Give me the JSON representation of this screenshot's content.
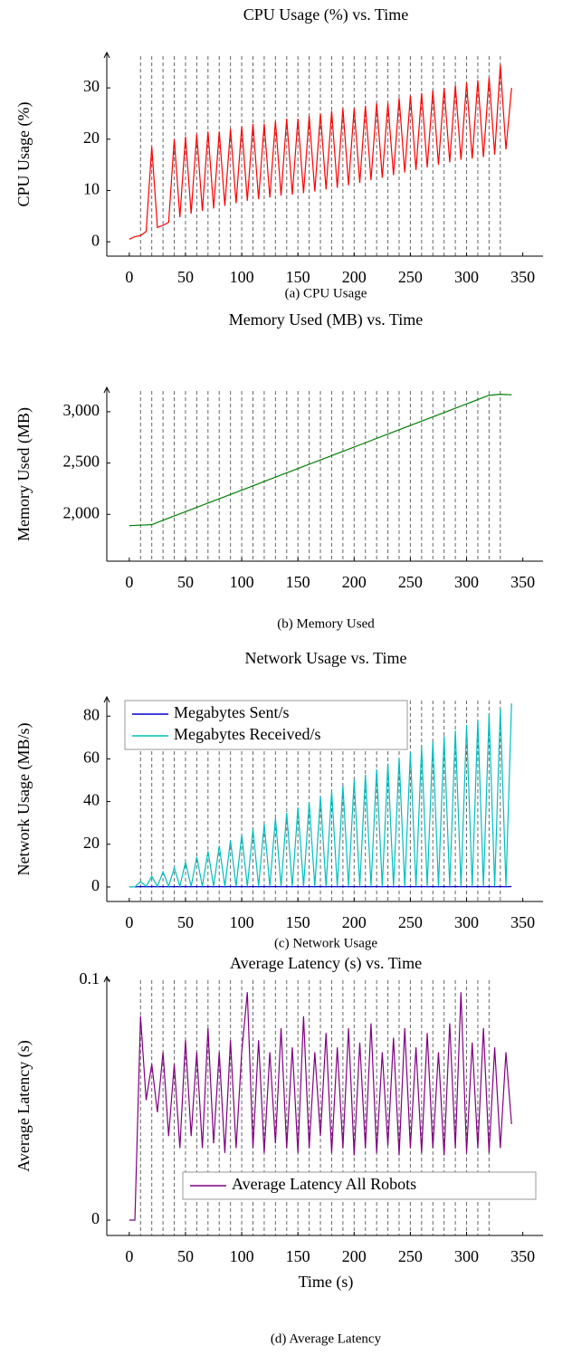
{
  "chart_data": [
    {
      "type": "line",
      "title": "CPU Usage (%) vs. Time",
      "caption": "(a) CPU Usage",
      "ylabel": "CPU Usage (%)",
      "x": [
        0,
        5,
        10,
        15,
        20,
        25,
        30,
        35,
        40,
        45,
        50,
        55,
        60,
        65,
        70,
        75,
        80,
        85,
        90,
        95,
        100,
        105,
        110,
        115,
        120,
        125,
        130,
        135,
        140,
        145,
        150,
        155,
        160,
        165,
        170,
        175,
        180,
        185,
        190,
        195,
        200,
        205,
        210,
        215,
        220,
        225,
        230,
        235,
        240,
        245,
        250,
        255,
        260,
        265,
        270,
        275,
        280,
        285,
        290,
        295,
        300,
        305,
        310,
        315,
        320,
        325,
        330,
        335,
        340
      ],
      "series": [
        {
          "color": "#ff0000",
          "values": [
            0.5,
            1,
            1.2,
            2,
            18.5,
            2.8,
            3.2,
            3.8,
            20,
            4.8,
            20.5,
            5.5,
            21,
            6,
            21.5,
            6.5,
            21.5,
            7,
            22,
            7.5,
            22.5,
            8,
            23,
            8.3,
            23,
            8.6,
            23.5,
            9,
            24,
            9.2,
            24,
            9.5,
            24.5,
            9.8,
            25,
            10.2,
            25.5,
            10.5,
            26,
            11,
            26,
            11.5,
            26.5,
            12,
            27,
            12.5,
            27,
            13,
            28,
            13.5,
            28.5,
            14,
            29,
            14.5,
            29.5,
            15,
            30,
            15.5,
            30.5,
            16,
            31,
            16.2,
            31.5,
            16.5,
            32,
            17,
            34.5,
            18,
            30
          ]
        }
      ],
      "xlim": [
        -20,
        368
      ],
      "ylim": [
        -2.8,
        36.9
      ],
      "xticks": [
        0,
        50,
        100,
        150,
        200,
        250,
        300,
        350
      ],
      "yticks": [
        0,
        10,
        20,
        30
      ],
      "vlines": [
        10,
        20,
        30,
        40,
        50,
        60,
        70,
        80,
        90,
        100,
        110,
        120,
        130,
        140,
        150,
        160,
        170,
        180,
        190,
        200,
        210,
        220,
        230,
        240,
        250,
        260,
        270,
        280,
        290,
        300,
        310,
        320,
        330
      ]
    },
    {
      "type": "line",
      "title": "Memory Used (MB) vs. Time",
      "caption": "(b) Memory Used",
      "ylabel": "Memory Used (MB)",
      "x": [
        0,
        10,
        20,
        30,
        40,
        50,
        60,
        70,
        80,
        90,
        100,
        110,
        120,
        130,
        140,
        150,
        160,
        170,
        180,
        190,
        200,
        210,
        220,
        230,
        240,
        250,
        260,
        270,
        280,
        290,
        300,
        310,
        320,
        330,
        340
      ],
      "series": [
        {
          "color": "#008000",
          "values": [
            1890,
            1895,
            1900,
            1942,
            1984,
            2026,
            2068,
            2110,
            2152,
            2194,
            2236,
            2278,
            2320,
            2362,
            2404,
            2446,
            2488,
            2530,
            2572,
            2614,
            2656,
            2698,
            2740,
            2782,
            2824,
            2866,
            2908,
            2950,
            2992,
            3034,
            3076,
            3118,
            3160,
            3170,
            3165
          ]
        }
      ],
      "xlim": [
        -20,
        368
      ],
      "ylim": [
        1544,
        3237
      ],
      "xticks": [
        0,
        50,
        100,
        150,
        200,
        250,
        300,
        350
      ],
      "yticks": [
        {
          "value": 2000,
          "label": "2,000"
        },
        {
          "value": 2500,
          "label": "2,500"
        },
        {
          "value": 3000,
          "label": "3,000"
        }
      ],
      "vlines": [
        10,
        20,
        30,
        40,
        50,
        60,
        70,
        80,
        90,
        100,
        110,
        120,
        130,
        140,
        150,
        160,
        170,
        180,
        190,
        200,
        210,
        220,
        230,
        240,
        250,
        260,
        270,
        280,
        290,
        300,
        310,
        320,
        330
      ]
    },
    {
      "type": "line",
      "title": "Network Usage vs. Time",
      "caption": "(c) Network Usage",
      "ylabel": "Network Usage (MB/s)",
      "x": [
        0,
        5,
        10,
        15,
        20,
        25,
        30,
        35,
        40,
        45,
        50,
        55,
        60,
        65,
        70,
        75,
        80,
        85,
        90,
        95,
        100,
        105,
        110,
        115,
        120,
        125,
        130,
        135,
        140,
        145,
        150,
        155,
        160,
        165,
        170,
        175,
        180,
        185,
        190,
        195,
        200,
        205,
        210,
        215,
        220,
        225,
        230,
        235,
        240,
        245,
        250,
        255,
        260,
        265,
        270,
        275,
        280,
        285,
        290,
        295,
        300,
        305,
        310,
        315,
        320,
        325,
        330,
        335,
        340
      ],
      "series": [
        {
          "name": "Megabytes Sent/s",
          "color": "#0000cc",
          "values": [
            0,
            0,
            0.2,
            0.1,
            0.2,
            0.1,
            0.2,
            0.1,
            0.2,
            0.1,
            0.2,
            0.1,
            0.2,
            0.1,
            0.2,
            0.1,
            0.2,
            0.1,
            0.2,
            0.1,
            0.2,
            0.1,
            0.2,
            0.1,
            0.2,
            0.1,
            0.2,
            0.1,
            0.2,
            0.1,
            0.2,
            0.1,
            0.2,
            0.1,
            0.2,
            0.1,
            0.2,
            0.1,
            0.2,
            0.1,
            0.2,
            0.1,
            0.2,
            0.1,
            0.2,
            0.1,
            0.2,
            0.1,
            0.2,
            0.1,
            0.2,
            0.1,
            0.2,
            0.1,
            0.2,
            0.1,
            0.2,
            0.1,
            0.2,
            0.1,
            0.2,
            0.1,
            0.2,
            0.1,
            0.2,
            0.1,
            0.2,
            0.1,
            0.2
          ]
        },
        {
          "name": "Megabytes Received/s",
          "color": "#00bfbf",
          "values": [
            0,
            0,
            2.5,
            0.3,
            5,
            0.3,
            7,
            0.3,
            9,
            0.3,
            11.6,
            0.3,
            14.1,
            0.3,
            16.7,
            0.3,
            19.3,
            0.3,
            21.8,
            0.3,
            24.4,
            0.3,
            27,
            0.3,
            29.5,
            0.3,
            32.1,
            0.3,
            34.7,
            0.3,
            37.2,
            0.3,
            39.8,
            0.3,
            42.4,
            0.3,
            45,
            0.3,
            47.5,
            0.3,
            50.1,
            0.3,
            52.6,
            0.3,
            55.2,
            0.3,
            57.8,
            0.3,
            60.4,
            0.3,
            62.9,
            0.3,
            65.5,
            0.3,
            68.1,
            0.3,
            70.6,
            0.3,
            73.2,
            0.3,
            75.8,
            0.3,
            78.3,
            0.3,
            80.9,
            0.3,
            83.5,
            0.3,
            86
          ]
        }
      ],
      "xlim": [
        -20,
        368
      ],
      "ylim": [
        -6.8,
        89
      ],
      "xticks": [
        0,
        50,
        100,
        150,
        200,
        250,
        300,
        350
      ],
      "yticks": [
        0,
        20,
        40,
        60,
        80
      ],
      "legend": "top-left",
      "vlines": [
        10,
        20,
        30,
        40,
        50,
        60,
        70,
        80,
        90,
        100,
        110,
        120,
        130,
        140,
        150,
        160,
        170,
        180,
        190,
        200,
        210,
        220,
        230,
        240,
        250,
        260,
        270,
        280,
        290,
        300,
        310,
        320,
        330
      ]
    },
    {
      "type": "line",
      "title": "Average Latency (s) vs. Time",
      "caption": "(d) Average Latency",
      "ylabel": "Average Latency (s)",
      "xlabel": "Time (s)",
      "x": [
        0,
        5,
        10,
        15,
        20,
        25,
        30,
        35,
        40,
        45,
        50,
        55,
        60,
        65,
        70,
        75,
        80,
        85,
        90,
        95,
        100,
        105,
        110,
        115,
        120,
        125,
        130,
        135,
        140,
        145,
        150,
        155,
        160,
        165,
        170,
        175,
        180,
        185,
        190,
        195,
        200,
        205,
        210,
        215,
        220,
        225,
        230,
        235,
        240,
        245,
        250,
        255,
        260,
        265,
        270,
        275,
        280,
        285,
        290,
        295,
        300,
        305,
        310,
        315,
        320,
        325,
        330,
        335,
        340
      ],
      "series": [
        {
          "name": "Average Latency All Robots",
          "color": "#800080",
          "values": [
            0,
            0,
            0.085,
            0.05,
            0.065,
            0.045,
            0.07,
            0.035,
            0.065,
            0.03,
            0.075,
            0.035,
            0.07,
            0.03,
            0.08,
            0.032,
            0.07,
            0.028,
            0.075,
            0.03,
            0.07,
            0.095,
            0.03,
            0.075,
            0.028,
            0.07,
            0.032,
            0.08,
            0.03,
            0.072,
            0.028,
            0.085,
            0.03,
            0.07,
            0.035,
            0.078,
            0.028,
            0.072,
            0.03,
            0.08,
            0.027,
            0.074,
            0.03,
            0.082,
            0.028,
            0.07,
            0.031,
            0.076,
            0.027,
            0.08,
            0.03,
            0.072,
            0.028,
            0.078,
            0.03,
            0.07,
            0.027,
            0.082,
            0.03,
            0.095,
            0.028,
            0.074,
            0.03,
            0.08,
            0.028,
            0.072,
            0.03,
            0.07,
            0.04
          ]
        }
      ],
      "xlim": [
        -20,
        368
      ],
      "ylim": [
        -0.0064,
        0.1015
      ],
      "xticks": [
        0,
        50,
        100,
        150,
        200,
        250,
        300,
        350
      ],
      "yticks": [
        0,
        0.1
      ],
      "legend": "bottom-right",
      "vlines": [
        10,
        20,
        30,
        40,
        50,
        60,
        70,
        80,
        90,
        100,
        110,
        120,
        130,
        140,
        150,
        160,
        170,
        180,
        190,
        200,
        210,
        220,
        230,
        240,
        250,
        260,
        270,
        280,
        290,
        300,
        310,
        320
      ]
    }
  ]
}
